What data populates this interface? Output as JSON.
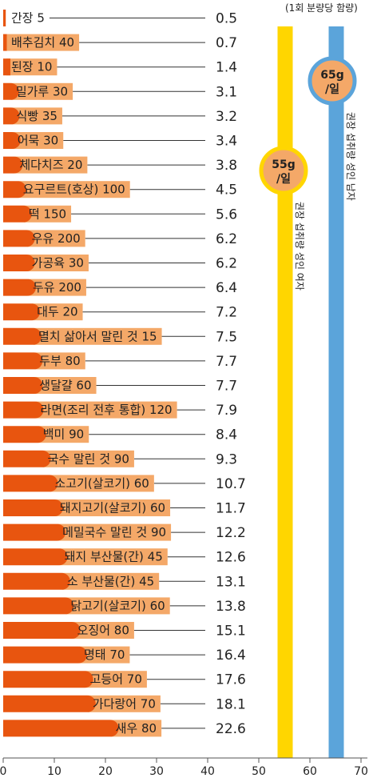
{
  "chart_data": {
    "type": "bar",
    "orientation": "horizontal",
    "note": "(1회 분량당 함량)",
    "categories": [
      "간장 5",
      "배추김치 40",
      "된장 10",
      "밀가루 30",
      "식빵 35",
      "어묵 30",
      "체다치즈 20",
      "요구르트(호상) 100",
      "떡 150",
      "우유 200",
      "가공육 30",
      "두유 200",
      "대두 20",
      "멸치 삶아서 말린 것 15",
      "두부 80",
      "생달걀 60",
      "라면(조리 전후 통합) 120",
      "백미 90",
      "국수 말린 것 90",
      "소고기(살코기) 60",
      "돼지고기(살코기) 60",
      "메밀국수 말린 것 90",
      "돼지 부산물(간) 45",
      "소 부산물(간) 45",
      "닭고기(살코기) 60",
      "오징어 80",
      "명태 70",
      "고등어 70",
      "가다랑어 70",
      "새우 80"
    ],
    "values": [
      0.5,
      0.7,
      1.4,
      3.1,
      3.2,
      3.4,
      3.8,
      4.5,
      5.6,
      6.2,
      6.2,
      6.4,
      7.2,
      7.5,
      7.7,
      7.7,
      7.9,
      8.4,
      9.3,
      10.7,
      11.7,
      12.2,
      12.6,
      13.1,
      13.8,
      15.1,
      16.4,
      17.6,
      18.1,
      22.6
    ],
    "value_labels": [
      "0.5",
      "0.7",
      "1.4",
      "3.1",
      "3.2",
      "3.4",
      "3.8",
      "4.5",
      "5.6",
      "6.2",
      "6.2",
      "6.4",
      "7.2",
      "7.5",
      "7.7",
      "7.7",
      "7.9",
      "8.4",
      "9.3",
      "10.7",
      "11.7",
      "12.2",
      "12.6",
      "13.1",
      "13.8",
      "15.1",
      "16.4",
      "17.6",
      "18.1",
      "22.6"
    ],
    "x_ticks": [
      "0",
      "10",
      "20",
      "30",
      "40",
      "50",
      "60",
      "70"
    ],
    "xlim": [
      0,
      70
    ],
    "reference_lines": [
      {
        "value": 55,
        "label": "권장 섭취량 성인 여자",
        "badge_value": "55g",
        "badge_unit": "/일",
        "color": "#FFD600"
      },
      {
        "value": 65,
        "label": "권장 섭취량 성인 남자",
        "badge_value": "65g",
        "badge_unit": "/일",
        "color": "#5BA4DA"
      }
    ],
    "colors": {
      "bar_fill": "#E8550F",
      "label_bg": "#F4A868",
      "leader": "#333333",
      "axis": "#555555"
    }
  }
}
